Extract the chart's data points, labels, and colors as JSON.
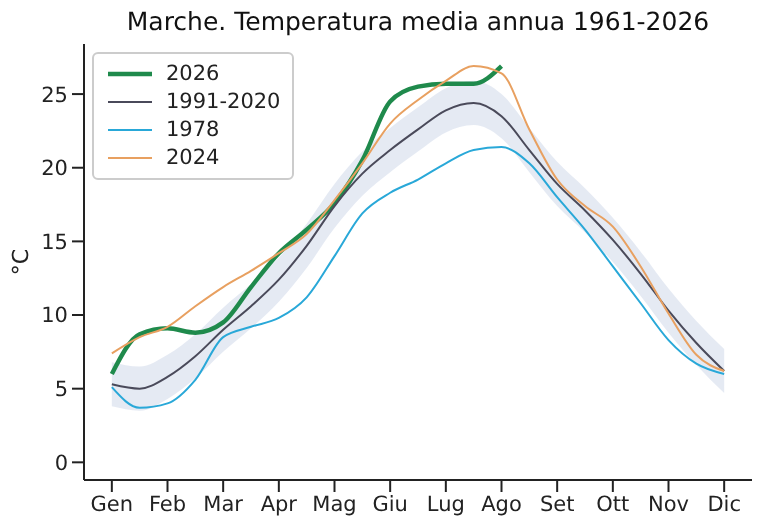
{
  "chart_data": {
    "type": "line",
    "title": "Marche. Temperatura media annua 1961-2026",
    "ylabel": "°C",
    "categories": [
      "Gen",
      null,
      "Feb",
      null,
      "Mar",
      null,
      "Apr",
      null,
      "Mag",
      null,
      "Giu",
      null,
      "Lug",
      null,
      "Ago",
      null,
      "Set",
      null,
      "Ott",
      null,
      "Nov",
      null,
      "Dic"
    ],
    "ylim": [
      -1.2,
      28.4
    ],
    "yticks": [
      0,
      5,
      10,
      15,
      20,
      25
    ],
    "legend": "top left",
    "grid": false,
    "marker": "none",
    "line_style": "solid",
    "series": [
      {
        "name": "2026",
        "color": "#1f8a4c",
        "values": [
          6.0,
          8.7,
          9.1,
          8.8,
          9.5,
          11.9,
          14.2,
          15.8,
          17.6,
          20.5,
          24.5,
          25.5,
          25.7,
          25.7,
          26.9,
          null,
          null,
          null,
          null,
          null,
          null,
          null,
          null
        ]
      },
      {
        "name": "1991-2020",
        "color": "#4a4a5a",
        "values": [
          5.3,
          5.0,
          5.8,
          7.2,
          9.0,
          10.6,
          12.4,
          14.7,
          17.4,
          19.6,
          21.2,
          22.6,
          23.9,
          24.4,
          23.5,
          21.2,
          18.9,
          17.1,
          15.1,
          12.8,
          10.3,
          8.1,
          6.2
        ],
        "lower": [
          3.8,
          3.5,
          4.3,
          5.7,
          7.5,
          9.1,
          10.9,
          13.2,
          15.9,
          18.1,
          19.7,
          21.1,
          22.4,
          22.9,
          22.0,
          19.7,
          17.4,
          15.6,
          13.6,
          11.3,
          8.8,
          6.6,
          4.7
        ],
        "upper": [
          6.8,
          6.5,
          7.3,
          8.7,
          10.5,
          12.1,
          13.9,
          16.2,
          18.9,
          21.1,
          22.7,
          24.1,
          25.4,
          25.9,
          25.0,
          22.7,
          20.4,
          18.6,
          16.6,
          14.3,
          11.8,
          9.6,
          7.7
        ]
      },
      {
        "name": "1978",
        "color": "#29a8d8",
        "values": [
          5.1,
          3.7,
          4.0,
          5.6,
          8.5,
          9.2,
          9.8,
          11.2,
          14.0,
          16.9,
          18.3,
          19.2,
          20.3,
          21.2,
          21.4,
          20.3,
          18.0,
          15.8,
          13.3,
          10.8,
          8.3,
          6.7,
          6.0
        ]
      },
      {
        "name": "2024",
        "color": "#e8a060",
        "values": [
          7.4,
          8.5,
          9.2,
          10.6,
          11.9,
          13.0,
          14.2,
          15.5,
          17.8,
          20.3,
          23.0,
          24.6,
          25.9,
          26.9,
          26.4,
          22.6,
          19.2,
          17.4,
          16.0,
          13.3,
          10.1,
          7.3,
          6.2
        ]
      }
    ]
  }
}
